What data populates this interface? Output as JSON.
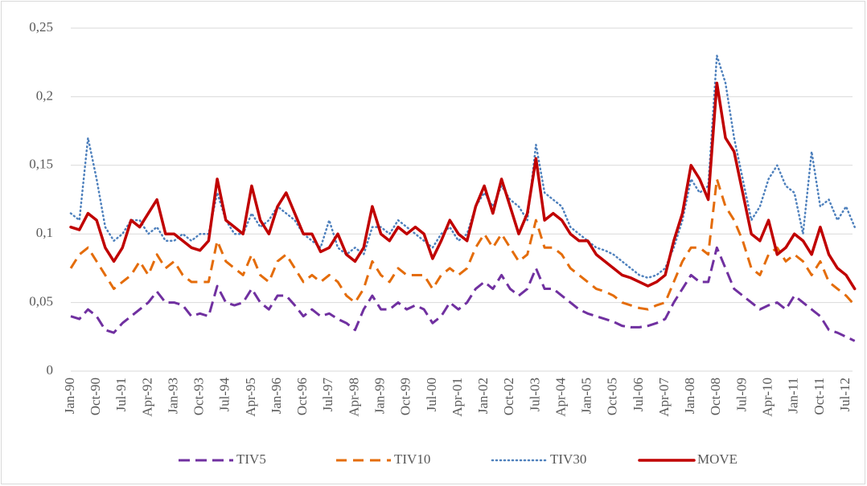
{
  "chart_data": {
    "type": "line",
    "categories": [
      "Jan-90",
      null,
      null,
      "Oct-90",
      null,
      null,
      "Jul-91",
      null,
      null,
      "Apr-92",
      null,
      null,
      "Jan-93",
      null,
      null,
      "Oct-93",
      null,
      null,
      "Jul-94",
      null,
      null,
      "Apr-95",
      null,
      null,
      "Jan-96",
      null,
      null,
      "Oct-96",
      null,
      null,
      "Jul-97",
      null,
      null,
      "Apr-98",
      null,
      null,
      "Jan-99",
      null,
      null,
      "Oct-99",
      null,
      null,
      "Jul-00",
      null,
      null,
      "Apr-01",
      null,
      null,
      "Jan-02",
      null,
      null,
      "Oct-02",
      null,
      null,
      "Jul-03",
      null,
      null,
      "Apr-04",
      null,
      null,
      "Jan-05",
      null,
      null,
      "Oct-05",
      null,
      null,
      "Jul-06",
      null,
      null,
      "Apr-07",
      null,
      null,
      "Jan-08",
      null,
      null,
      "Oct-08",
      null,
      null,
      "Jul-09",
      null,
      null,
      "Apr-10",
      null,
      null,
      "Jan-11",
      null,
      null,
      "Oct-11",
      null,
      null,
      "Jul-12",
      null
    ],
    "series": [
      {
        "name": "TIV5",
        "color": "#7030a0",
        "dash": "dashed",
        "values": [
          0.04,
          0.038,
          0.045,
          0.04,
          0.03,
          0.028,
          0.035,
          0.04,
          0.045,
          0.05,
          0.058,
          0.05,
          0.05,
          0.048,
          0.04,
          0.042,
          0.04,
          0.062,
          0.05,
          0.048,
          0.05,
          0.06,
          0.05,
          0.045,
          0.055,
          0.055,
          0.048,
          0.04,
          0.045,
          0.04,
          0.042,
          0.038,
          0.035,
          0.03,
          0.045,
          0.055,
          0.045,
          0.045,
          0.05,
          0.045,
          0.048,
          0.045,
          0.035,
          0.04,
          0.05,
          0.045,
          0.05,
          0.06,
          0.065,
          0.06,
          0.07,
          0.06,
          0.055,
          0.06,
          0.075,
          0.06,
          0.06,
          0.055,
          0.05,
          0.045,
          0.042,
          0.04,
          0.038,
          0.036,
          0.033,
          0.032,
          0.032,
          0.033,
          0.035,
          0.038,
          0.05,
          0.06,
          0.07,
          0.065,
          0.065,
          0.09,
          0.075,
          0.06,
          0.055,
          0.05,
          0.045,
          0.048,
          0.05,
          0.045,
          0.055,
          0.05,
          0.045,
          0.04,
          0.03,
          0.028,
          0.025,
          0.022
        ]
      },
      {
        "name": "TIV10",
        "color": "#e46c0a",
        "dash": "long-dashed",
        "values": [
          0.075,
          0.085,
          0.09,
          0.08,
          0.07,
          0.06,
          0.065,
          0.07,
          0.08,
          0.07,
          0.085,
          0.075,
          0.08,
          0.07,
          0.065,
          0.065,
          0.065,
          0.095,
          0.08,
          0.075,
          0.07,
          0.085,
          0.07,
          0.065,
          0.08,
          0.085,
          0.075,
          0.065,
          0.07,
          0.065,
          0.07,
          0.065,
          0.055,
          0.05,
          0.06,
          0.08,
          0.07,
          0.065,
          0.075,
          0.07,
          0.07,
          0.07,
          0.06,
          0.07,
          0.075,
          0.07,
          0.075,
          0.09,
          0.1,
          0.09,
          0.1,
          0.09,
          0.08,
          0.085,
          0.11,
          0.09,
          0.09,
          0.085,
          0.075,
          0.07,
          0.065,
          0.06,
          0.058,
          0.055,
          0.05,
          0.048,
          0.046,
          0.045,
          0.048,
          0.05,
          0.065,
          0.08,
          0.09,
          0.09,
          0.085,
          0.14,
          0.12,
          0.11,
          0.095,
          0.075,
          0.07,
          0.085,
          0.09,
          0.08,
          0.085,
          0.08,
          0.07,
          0.08,
          0.065,
          0.06,
          0.055,
          0.048
        ]
      },
      {
        "name": "TIV30",
        "color": "#4f81bd",
        "dash": "dotted",
        "values": [
          0.115,
          0.11,
          0.17,
          0.14,
          0.105,
          0.095,
          0.1,
          0.11,
          0.11,
          0.1,
          0.105,
          0.095,
          0.095,
          0.1,
          0.095,
          0.1,
          0.1,
          0.13,
          0.11,
          0.1,
          0.1,
          0.115,
          0.105,
          0.11,
          0.12,
          0.115,
          0.11,
          0.1,
          0.095,
          0.09,
          0.11,
          0.09,
          0.085,
          0.09,
          0.085,
          0.105,
          0.105,
          0.1,
          0.11,
          0.105,
          0.1,
          0.095,
          0.09,
          0.1,
          0.105,
          0.095,
          0.1,
          0.12,
          0.13,
          0.12,
          0.135,
          0.125,
          0.12,
          0.11,
          0.165,
          0.13,
          0.125,
          0.12,
          0.105,
          0.1,
          0.095,
          0.09,
          0.088,
          0.085,
          0.08,
          0.075,
          0.07,
          0.068,
          0.07,
          0.075,
          0.09,
          0.11,
          0.14,
          0.13,
          0.135,
          0.23,
          0.21,
          0.17,
          0.14,
          0.11,
          0.12,
          0.14,
          0.15,
          0.135,
          0.13,
          0.1,
          0.16,
          0.12,
          0.125,
          0.11,
          0.12,
          0.105
        ]
      },
      {
        "name": "MOVE",
        "color": "#c00000",
        "dash": "solid",
        "values": [
          0.105,
          0.103,
          0.115,
          0.11,
          0.09,
          0.08,
          0.09,
          0.11,
          0.105,
          0.115,
          0.125,
          0.1,
          0.1,
          0.095,
          0.09,
          0.088,
          0.095,
          0.14,
          0.11,
          0.105,
          0.1,
          0.135,
          0.11,
          0.1,
          0.12,
          0.13,
          0.115,
          0.1,
          0.1,
          0.087,
          0.09,
          0.1,
          0.085,
          0.08,
          0.09,
          0.12,
          0.1,
          0.095,
          0.105,
          0.1,
          0.105,
          0.1,
          0.082,
          0.095,
          0.11,
          0.1,
          0.095,
          0.12,
          0.135,
          0.115,
          0.14,
          0.12,
          0.1,
          0.115,
          0.155,
          0.11,
          0.115,
          0.11,
          0.1,
          0.095,
          0.095,
          0.085,
          0.08,
          0.075,
          0.07,
          0.068,
          0.065,
          0.062,
          0.065,
          0.07,
          0.095,
          0.115,
          0.15,
          0.14,
          0.125,
          0.21,
          0.17,
          0.16,
          0.13,
          0.1,
          0.095,
          0.11,
          0.085,
          0.09,
          0.1,
          0.095,
          0.085,
          0.105,
          0.085,
          0.075,
          0.07,
          0.06
        ]
      }
    ],
    "ylim": [
      0,
      0.25
    ],
    "yticks": [
      0,
      {
        "value": 0.05,
        "label": "0,05"
      },
      {
        "value": 0.1,
        "label": "0,1"
      },
      {
        "value": 0.15,
        "label": "0,15"
      },
      {
        "value": 0.2,
        "label": "0,2"
      },
      {
        "value": 0.25,
        "label": "0,25"
      }
    ],
    "grid": true,
    "legend": "bottom"
  }
}
